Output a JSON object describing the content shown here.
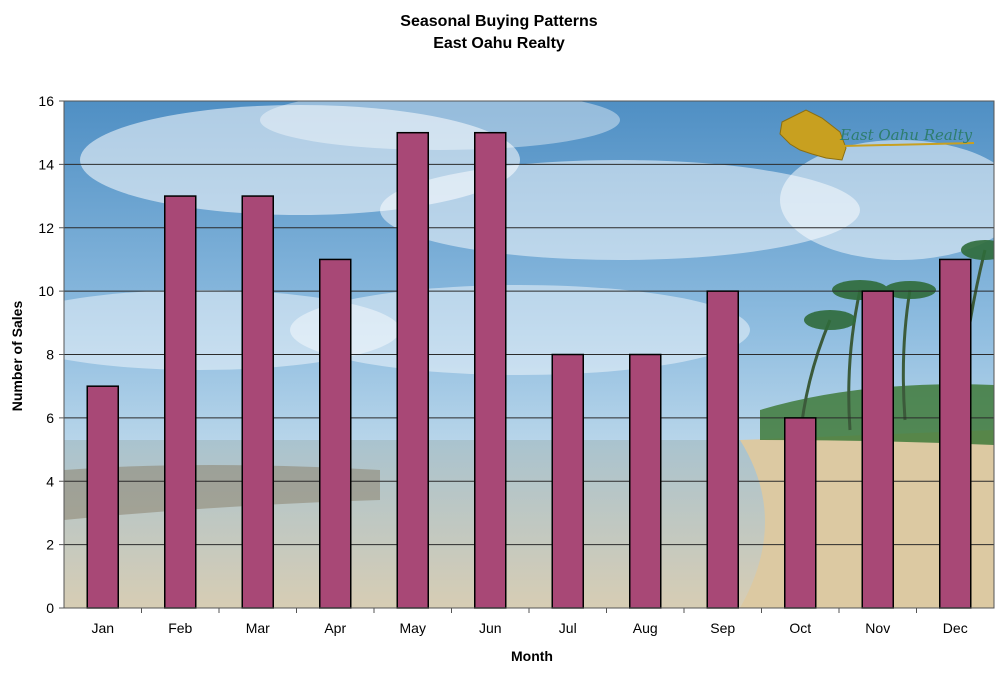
{
  "chart_data": {
    "type": "bar",
    "title": "Seasonal Buying Patterns",
    "subtitle": "East Oahu Realty",
    "xlabel": "Month",
    "ylabel": "Number of Sales",
    "categories": [
      "Jan",
      "Feb",
      "Mar",
      "Apr",
      "May",
      "Jun",
      "Jul",
      "Aug",
      "Sep",
      "Oct",
      "Nov",
      "Dec"
    ],
    "values": [
      7,
      13,
      13,
      11,
      15,
      15,
      8,
      8,
      10,
      6,
      10,
      11
    ],
    "ylim": [
      0,
      16
    ],
    "yticks": [
      0,
      2,
      4,
      6,
      8,
      10,
      12,
      14,
      16
    ],
    "grid": true,
    "legend": "none",
    "bar_color": "#a84876",
    "background": "beach photograph (sky, ocean, sand, palm trees)"
  },
  "logo": {
    "text": "East Oahu Realty",
    "color": "#c8a020",
    "text_color": "#2e7d6e"
  }
}
